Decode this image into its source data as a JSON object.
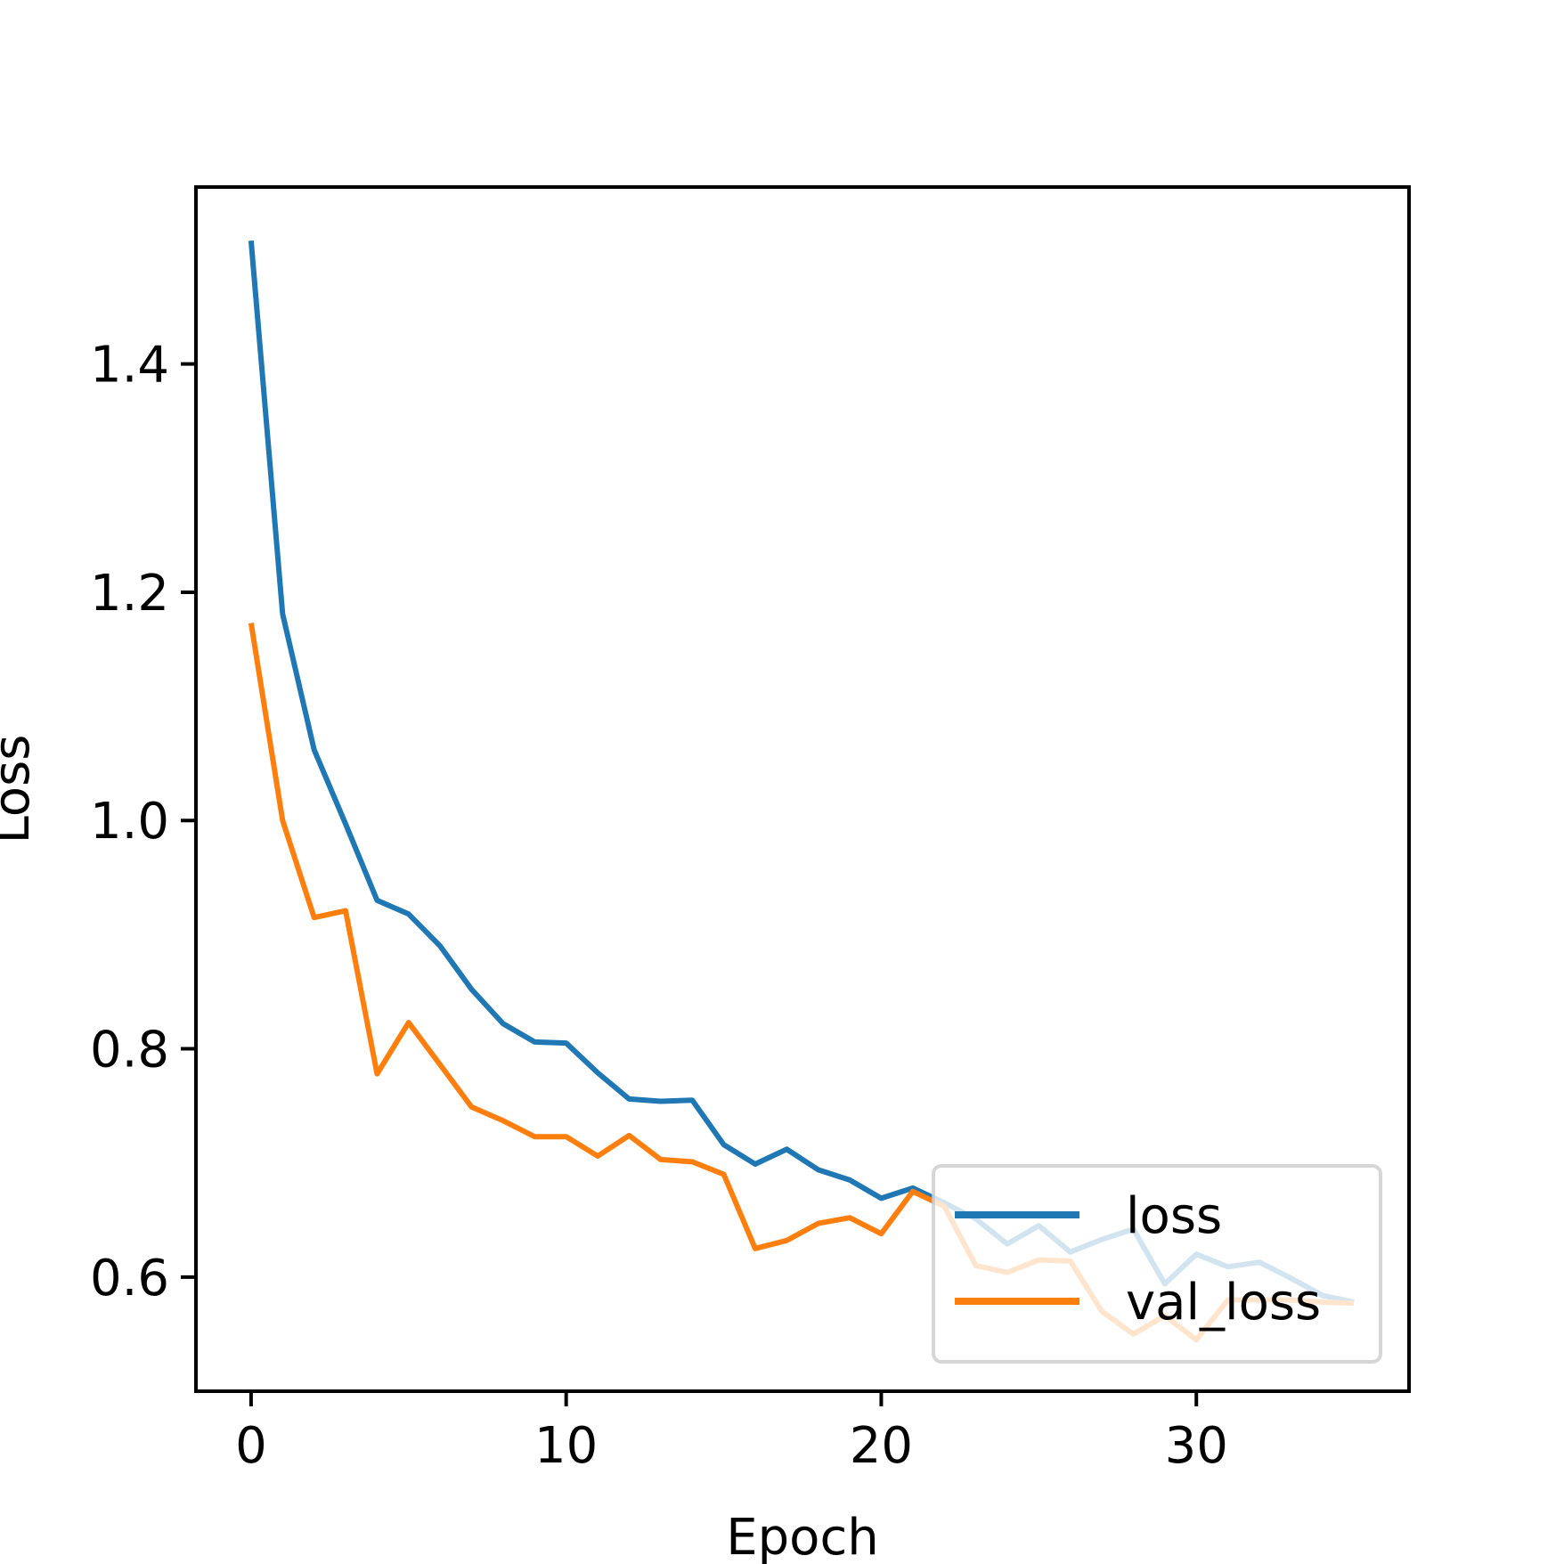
{
  "chart_data": {
    "type": "line",
    "title": "",
    "xlabel": "Epoch",
    "ylabel": "Loss",
    "xlim": [
      -1.75,
      36.75
    ],
    "ylim": [
      0.5,
      1.555
    ],
    "x_ticks": [
      0,
      10,
      20,
      30
    ],
    "x_tick_labels": [
      "0",
      "10",
      "20",
      "30"
    ],
    "y_ticks": [
      0.6,
      0.8,
      1.0,
      1.2,
      1.4
    ],
    "y_tick_labels": [
      "0.6",
      "0.8",
      "1.0",
      "1.2",
      "1.4"
    ],
    "grid": false,
    "legend_position": "lower right",
    "x": [
      0,
      1,
      2,
      3,
      4,
      5,
      6,
      7,
      8,
      9,
      10,
      11,
      12,
      13,
      14,
      15,
      16,
      17,
      18,
      19,
      20,
      21,
      22,
      23,
      24,
      25,
      26,
      27,
      28,
      29,
      30,
      31,
      32,
      33,
      34,
      35
    ],
    "series": [
      {
        "name": "loss",
        "color": "#1f77b4",
        "values": [
          1.508,
          1.181,
          1.062,
          0.997,
          0.93,
          0.918,
          0.89,
          0.852,
          0.822,
          0.806,
          0.805,
          0.779,
          0.756,
          0.754,
          0.755,
          0.716,
          0.699,
          0.712,
          0.694,
          0.685,
          0.669,
          0.678,
          0.665,
          0.651,
          0.629,
          0.645,
          0.622,
          0.633,
          0.642,
          0.594,
          0.62,
          0.609,
          0.613,
          0.599,
          0.584,
          0.578
        ]
      },
      {
        "name": "val_loss",
        "color": "#ff7f0e",
        "values": [
          1.173,
          1.0,
          0.915,
          0.921,
          0.778,
          0.823,
          0.786,
          0.749,
          0.737,
          0.723,
          0.723,
          0.706,
          0.724,
          0.703,
          0.701,
          0.69,
          0.625,
          0.632,
          0.647,
          0.652,
          0.638,
          0.675,
          0.662,
          0.61,
          0.604,
          0.615,
          0.614,
          0.57,
          0.55,
          0.566,
          0.545,
          0.58,
          0.58,
          0.58,
          0.578,
          0.577
        ]
      }
    ]
  }
}
